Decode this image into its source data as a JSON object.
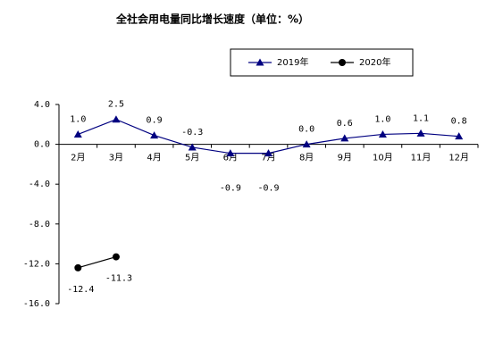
{
  "chart_data": {
    "type": "line",
    "title": "全社会用电量同比增长速度（单位：%）",
    "categories": [
      "2月",
      "3月",
      "4月",
      "5月",
      "6月",
      "7月",
      "8月",
      "9月",
      "10月",
      "11月",
      "12月"
    ],
    "series": [
      {
        "name": "2019年",
        "color": "#000080",
        "marker": "triangle",
        "values": [
          1.0,
          2.5,
          0.9,
          -0.3,
          -0.9,
          -0.9,
          0.0,
          0.6,
          1.0,
          1.1,
          0.8
        ],
        "value_labels": [
          "1.0",
          "2.5",
          "0.9",
          "-0.3",
          "-0.9",
          "-0.9",
          "0.0",
          "0.6",
          "1.0",
          "1.1",
          "0.8"
        ]
      },
      {
        "name": "2020年",
        "color": "#000000",
        "marker": "circle",
        "values": [
          -12.4,
          -11.3,
          null,
          null,
          null,
          null,
          null,
          null,
          null,
          null,
          null
        ],
        "value_labels": [
          "-12.4",
          "-11.3",
          null,
          null,
          null,
          null,
          null,
          null,
          null,
          null,
          null
        ]
      }
    ],
    "ylim": [
      -16,
      4
    ],
    "yticks": [
      {
        "value": 4,
        "label": "4.0"
      },
      {
        "value": 0,
        "label": "0.0"
      },
      {
        "value": -4,
        "label": "-4.0"
      },
      {
        "value": -8,
        "label": "-8.0"
      },
      {
        "value": -12,
        "label": "-12.0"
      },
      {
        "value": -16,
        "label": "-16.0"
      }
    ],
    "legend": "top"
  }
}
